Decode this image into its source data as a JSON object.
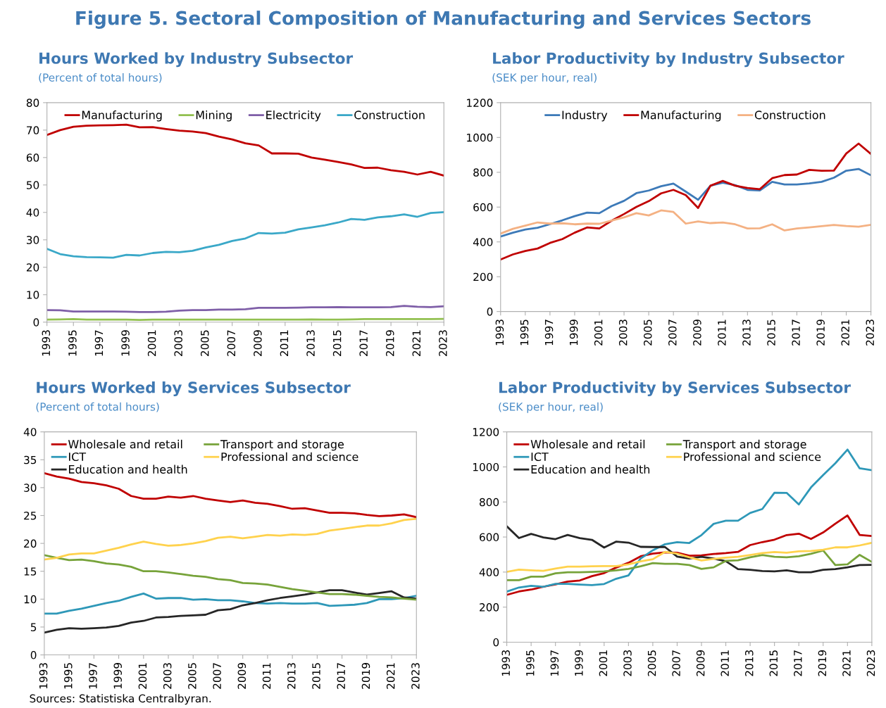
{
  "chart_data": [
    {
      "type": "line",
      "title": "Hours Worked by Industry Subsector",
      "subtitle": "(Percent of total hours)",
      "annotations": [
        "Figure 5. Sectoral Composition of Manufacturing and Services Sectors"
      ],
      "x": [
        1993,
        1994,
        1995,
        1996,
        1997,
        1998,
        1999,
        2000,
        2001,
        2002,
        2003,
        2004,
        2005,
        2006,
        2007,
        2008,
        2009,
        2010,
        2011,
        2012,
        2013,
        2014,
        2015,
        2016,
        2017,
        2018,
        2019,
        2020,
        2021,
        2022,
        2023
      ],
      "xlim": [
        1993,
        2023
      ],
      "xticks": [
        1993,
        1995,
        1997,
        1999,
        2001,
        2003,
        2005,
        2007,
        2009,
        2011,
        2013,
        2015,
        2017,
        2019,
        2021,
        2023
      ],
      "ylim": [
        0,
        80
      ],
      "yticks": [
        0,
        10,
        20,
        30,
        40,
        50,
        60,
        70,
        80
      ],
      "grid": false,
      "legend": "top",
      "series": [
        {
          "name": "Manufacturing",
          "color": "#c00000",
          "values": [
            68.2,
            70.0,
            71.2,
            71.6,
            71.7,
            71.8,
            72.0,
            71.0,
            71.1,
            70.4,
            69.8,
            69.5,
            68.9,
            67.6,
            66.6,
            65.2,
            64.4,
            61.5,
            61.5,
            61.4,
            60.0,
            59.2,
            58.4,
            57.5,
            56.2,
            56.3,
            55.4,
            54.8,
            53.8,
            54.8,
            53.4
          ]
        },
        {
          "name": "Mining",
          "color": "#92c050",
          "values": [
            0.9,
            1.0,
            1.1,
            0.9,
            0.9,
            0.9,
            0.9,
            0.8,
            0.9,
            0.9,
            0.9,
            0.9,
            0.9,
            0.9,
            0.9,
            0.9,
            0.9,
            0.9,
            0.9,
            0.9,
            1.0,
            0.9,
            0.9,
            1.0,
            1.1,
            1.1,
            1.1,
            1.1,
            1.1,
            1.1,
            1.2
          ]
        },
        {
          "name": "Electricity",
          "color": "#7f5fa8",
          "values": [
            4.4,
            4.3,
            3.9,
            3.9,
            3.9,
            3.9,
            3.8,
            3.7,
            3.7,
            3.8,
            4.2,
            4.4,
            4.4,
            4.6,
            4.6,
            4.7,
            5.2,
            5.2,
            5.2,
            5.3,
            5.4,
            5.4,
            5.5,
            5.4,
            5.4,
            5.4,
            5.5,
            5.9,
            5.6,
            5.5,
            5.8
          ]
        },
        {
          "name": "Construction",
          "color": "#3aa8c8",
          "values": [
            26.7,
            24.8,
            24.0,
            23.7,
            23.6,
            23.5,
            24.5,
            24.3,
            25.2,
            25.6,
            25.5,
            26.0,
            27.2,
            28.2,
            29.6,
            30.5,
            32.5,
            32.3,
            32.6,
            33.8,
            34.5,
            35.3,
            36.3,
            37.6,
            37.3,
            38.2,
            38.6,
            39.3,
            38.4,
            39.8,
            40.1
          ]
        }
      ]
    },
    {
      "type": "line",
      "title": "Labor Productivity by Industry Subsector",
      "subtitle": "(SEK per hour, real)",
      "x": [
        1993,
        1994,
        1995,
        1996,
        1997,
        1998,
        1999,
        2000,
        2001,
        2002,
        2003,
        2004,
        2005,
        2006,
        2007,
        2008,
        2009,
        2010,
        2011,
        2012,
        2013,
        2014,
        2015,
        2016,
        2017,
        2018,
        2019,
        2020,
        2021,
        2022,
        2023
      ],
      "xlim": [
        1993,
        2023
      ],
      "xticks": [
        1993,
        1995,
        1997,
        1999,
        2001,
        2003,
        2005,
        2007,
        2009,
        2011,
        2013,
        2015,
        2017,
        2019,
        2021,
        2023
      ],
      "ylim": [
        0,
        1200
      ],
      "yticks": [
        0,
        200,
        400,
        600,
        800,
        1000,
        1200
      ],
      "grid": false,
      "legend": "top",
      "series": [
        {
          "name": "Industry",
          "color": "#3d7ab8",
          "values": [
            431,
            453,
            471,
            481,
            502,
            524,
            548,
            568,
            565,
            606,
            636,
            680,
            695,
            720,
            735,
            689,
            642,
            723,
            740,
            726,
            699,
            696,
            745,
            730,
            730,
            736,
            745,
            769,
            809,
            819,
            783
          ]
        },
        {
          "name": "Manufacturing",
          "color": "#c00000",
          "values": [
            299,
            328,
            348,
            362,
            394,
            416,
            453,
            483,
            477,
            522,
            560,
            601,
            634,
            679,
            699,
            669,
            595,
            723,
            750,
            723,
            710,
            703,
            766,
            784,
            787,
            814,
            809,
            810,
            908,
            965,
            905
          ]
        },
        {
          "name": "Construction",
          "color": "#f4b183",
          "values": [
            448,
            475,
            493,
            512,
            505,
            507,
            501,
            505,
            504,
            523,
            541,
            565,
            552,
            581,
            572,
            505,
            518,
            508,
            512,
            501,
            477,
            478,
            501,
            466,
            477,
            483,
            490,
            497,
            491,
            487,
            498
          ]
        }
      ]
    },
    {
      "type": "line",
      "title": "Hours Worked by Services Subsector",
      "subtitle": "(Percent of total hours)",
      "x": [
        1993,
        1994,
        1995,
        1996,
        1997,
        1998,
        1999,
        2000,
        2001,
        2002,
        2003,
        2004,
        2005,
        2006,
        2007,
        2008,
        2009,
        2010,
        2011,
        2012,
        2013,
        2014,
        2015,
        2016,
        2017,
        2018,
        2019,
        2020,
        2021,
        2022,
        2023
      ],
      "xlim": [
        1993,
        2023
      ],
      "xticks": [
        1993,
        1995,
        1997,
        1999,
        2001,
        2003,
        2005,
        2007,
        2009,
        2011,
        2013,
        2015,
        2017,
        2019,
        2021,
        2023
      ],
      "ylim": [
        0,
        40
      ],
      "yticks": [
        0,
        5,
        10,
        15,
        20,
        25,
        30,
        35,
        40
      ],
      "grid": false,
      "legend": "top left",
      "series": [
        {
          "name": "Wholesale and retail",
          "color": "#c00000",
          "values": [
            32.6,
            32.0,
            31.6,
            31.0,
            30.8,
            30.4,
            29.8,
            28.5,
            28.0,
            28.0,
            28.4,
            28.2,
            28.5,
            28.0,
            27.7,
            27.4,
            27.7,
            27.3,
            27.1,
            26.7,
            26.2,
            26.3,
            25.9,
            25.5,
            25.5,
            25.4,
            25.1,
            24.9,
            25.0,
            25.2,
            24.7
          ]
        },
        {
          "name": "ICT",
          "color": "#2e98b8",
          "values": [
            7.4,
            7.4,
            7.9,
            8.3,
            8.8,
            9.3,
            9.7,
            10.4,
            11.0,
            10.1,
            10.2,
            10.2,
            9.9,
            10.0,
            9.8,
            9.8,
            9.6,
            9.3,
            9.2,
            9.3,
            9.2,
            9.2,
            9.3,
            8.8,
            8.9,
            9.0,
            9.3,
            10.0,
            10.0,
            10.2,
            10.6
          ]
        },
        {
          "name": "Education and health",
          "color": "#262626",
          "values": [
            4.0,
            4.5,
            4.8,
            4.7,
            4.8,
            4.9,
            5.2,
            5.8,
            6.1,
            6.7,
            6.8,
            7.0,
            7.1,
            7.2,
            8.0,
            8.2,
            8.9,
            9.3,
            9.8,
            10.2,
            10.5,
            10.8,
            11.2,
            11.6,
            11.6,
            11.2,
            10.8,
            11.1,
            11.4,
            10.3,
            10.1
          ]
        },
        {
          "name": "Transport and storage",
          "color": "#77a33a",
          "values": [
            17.9,
            17.4,
            17.0,
            17.1,
            16.8,
            16.4,
            16.2,
            15.8,
            15.0,
            15.0,
            14.8,
            14.5,
            14.2,
            14.0,
            13.6,
            13.4,
            12.9,
            12.8,
            12.6,
            12.2,
            11.8,
            11.5,
            11.2,
            10.9,
            10.9,
            10.8,
            10.6,
            10.4,
            10.3,
            10.1,
            9.9
          ]
        },
        {
          "name": "Professional and science",
          "color": "#ffd24d",
          "values": [
            17.1,
            17.4,
            18.0,
            18.2,
            18.2,
            18.7,
            19.2,
            19.8,
            20.3,
            19.9,
            19.6,
            19.7,
            20.0,
            20.4,
            21.0,
            21.2,
            20.9,
            21.2,
            21.5,
            21.4,
            21.6,
            21.5,
            21.7,
            22.3,
            22.6,
            22.9,
            23.2,
            23.2,
            23.6,
            24.2,
            24.4
          ]
        }
      ]
    },
    {
      "type": "line",
      "title": "Labor Productivity by Services Subsector",
      "subtitle": "(SEK per hour, real)",
      "annotations": [
        "Sources: Statistiska Centralbyran."
      ],
      "x": [
        1993,
        1994,
        1995,
        1996,
        1997,
        1998,
        1999,
        2000,
        2001,
        2002,
        2003,
        2004,
        2005,
        2006,
        2007,
        2008,
        2009,
        2010,
        2011,
        2012,
        2013,
        2014,
        2015,
        2016,
        2017,
        2018,
        2019,
        2020,
        2021,
        2022,
        2023
      ],
      "xlim": [
        1993,
        2023
      ],
      "xticks": [
        1993,
        1995,
        1997,
        1999,
        2001,
        2003,
        2005,
        2007,
        2009,
        2011,
        2013,
        2015,
        2017,
        2019,
        2021,
        2023
      ],
      "ylim": [
        0,
        1200
      ],
      "yticks": [
        0,
        200,
        400,
        600,
        800,
        1000,
        1200
      ],
      "grid": false,
      "legend": "top left",
      "series": [
        {
          "name": "Wholesale and retail",
          "color": "#c00000",
          "values": [
            270,
            289,
            300,
            316,
            330,
            346,
            352,
            377,
            394,
            426,
            453,
            490,
            505,
            512,
            510,
            493,
            495,
            503,
            508,
            515,
            554,
            571,
            585,
            611,
            619,
            589,
            626,
            676,
            723,
            612,
            606
          ]
        },
        {
          "name": "ICT",
          "color": "#2e98b8",
          "values": [
            289,
            312,
            322,
            316,
            333,
            333,
            329,
            326,
            332,
            362,
            381,
            477,
            524,
            559,
            571,
            566,
            611,
            675,
            693,
            693,
            737,
            760,
            853,
            852,
            786,
            883,
            954,
            1021,
            1099,
            992,
            981
          ]
        },
        {
          "name": "Education and health",
          "color": "#262626",
          "values": [
            661,
            594,
            618,
            598,
            588,
            612,
            594,
            584,
            540,
            574,
            568,
            544,
            543,
            543,
            488,
            477,
            487,
            477,
            462,
            417,
            413,
            406,
            404,
            410,
            399,
            399,
            413,
            417,
            427,
            440,
            441
          ]
        },
        {
          "name": "Transport and storage",
          "color": "#77a33a",
          "values": [
            354,
            354,
            374,
            374,
            393,
            399,
            399,
            401,
            404,
            410,
            418,
            433,
            451,
            447,
            447,
            440,
            418,
            427,
            464,
            467,
            484,
            497,
            487,
            484,
            490,
            504,
            523,
            440,
            444,
            498,
            458
          ]
        },
        {
          "name": "Professional and science",
          "color": "#ffd24d",
          "values": [
            401,
            414,
            410,
            407,
            420,
            431,
            431,
            433,
            434,
            434,
            444,
            461,
            473,
            515,
            505,
            484,
            466,
            475,
            482,
            487,
            497,
            508,
            514,
            510,
            518,
            520,
            527,
            541,
            541,
            552,
            567
          ]
        }
      ]
    }
  ]
}
